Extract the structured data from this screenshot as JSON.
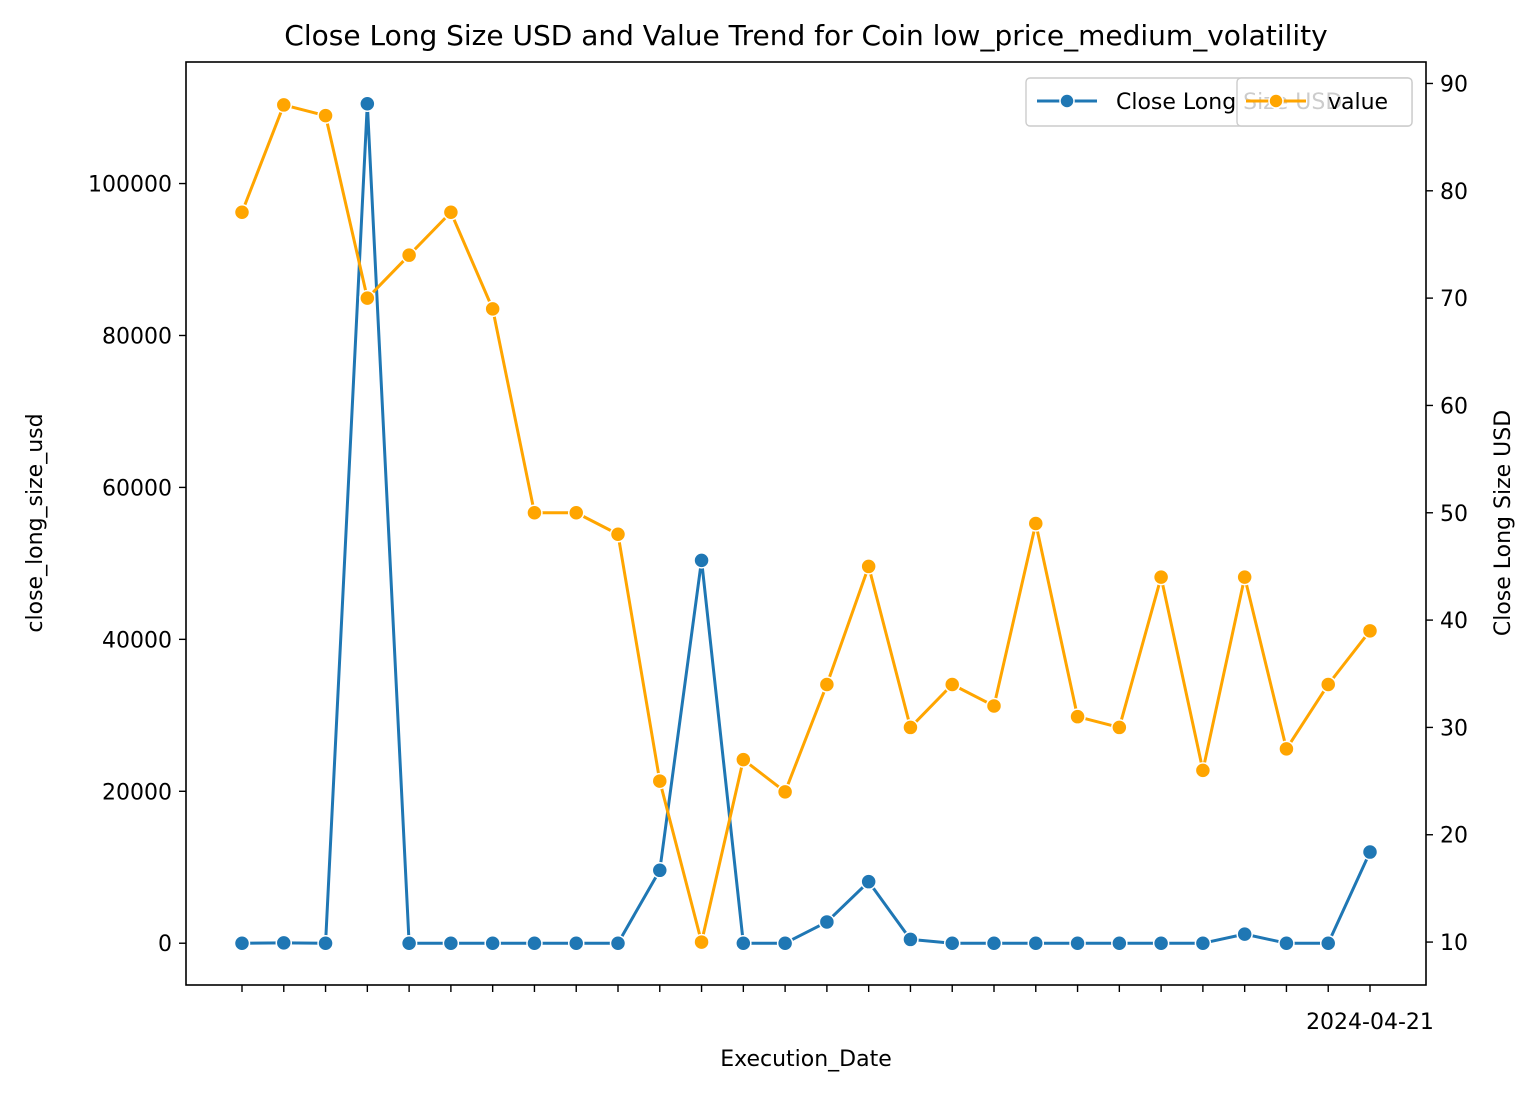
{
  "chart_data": {
    "type": "line",
    "title": "Close Long Size USD and Value Trend for Coin low_price_medium_volatility",
    "xlabel": "Execution_Date",
    "ylabel_left": "close_long_size_usd",
    "ylabel_right": "Close Long Size USD",
    "last_x_tick_label": "2024-04-21",
    "ylim_left": [
      -5500,
      116000
    ],
    "yticks_left": [
      0,
      20000,
      40000,
      60000,
      80000,
      100000
    ],
    "ylim_right": [
      6,
      92
    ],
    "yticks_right": [
      10,
      20,
      30,
      40,
      50,
      60,
      70,
      80,
      90
    ],
    "grid": false,
    "legend_placement": "top-right",
    "series": [
      {
        "name": "Close Long Size USD",
        "axis": "left",
        "color": "#1f77b4",
        "values": [
          0,
          50,
          0,
          110500,
          0,
          0,
          0,
          0,
          0,
          0,
          9600,
          50400,
          0,
          0,
          2800,
          8100,
          500,
          0,
          0,
          0,
          0,
          0,
          0,
          0,
          1200,
          0,
          0,
          12000
        ]
      },
      {
        "name": "value",
        "axis": "right",
        "color": "#ffa500",
        "values": [
          78,
          88,
          87,
          70,
          74,
          78,
          69,
          50,
          50,
          48,
          25,
          10,
          27,
          24,
          34,
          45,
          30,
          34,
          32,
          49,
          31,
          30,
          44,
          26,
          44,
          28,
          34,
          39
        ]
      }
    ]
  }
}
